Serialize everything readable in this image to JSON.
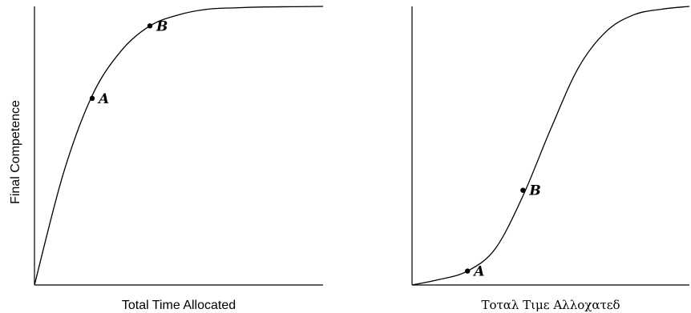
{
  "chart_data": [
    {
      "type": "line",
      "xlabel": "Total Time Allocated",
      "ylabel": "Final Competence",
      "xlim": [
        0,
        1
      ],
      "ylim": [
        0,
        1
      ],
      "curve_shape": "concave-saturating",
      "x": [
        0,
        0.1,
        0.2,
        0.3,
        0.4,
        0.5,
        0.6,
        0.7,
        0.8,
        0.9,
        1.0
      ],
      "y": [
        0,
        0.4,
        0.68,
        0.84,
        0.93,
        0.97,
        0.99,
        0.995,
        0.998,
        0.999,
        1.0
      ],
      "annotations": [
        {
          "label": "A",
          "x": 0.2,
          "y": 0.67
        },
        {
          "label": "B",
          "x": 0.4,
          "y": 0.93
        }
      ]
    },
    {
      "type": "line",
      "xlabel": "Τοταλ Τιμε Αλλοχατεδ",
      "ylabel": "",
      "xlim": [
        0,
        1
      ],
      "ylim": [
        0,
        1
      ],
      "curve_shape": "sigmoid",
      "x": [
        0,
        0.1,
        0.2,
        0.3,
        0.4,
        0.5,
        0.6,
        0.7,
        0.8,
        0.9,
        1.0
      ],
      "y": [
        0,
        0.02,
        0.05,
        0.13,
        0.32,
        0.56,
        0.78,
        0.91,
        0.97,
        0.99,
        1.0
      ],
      "annotations": [
        {
          "label": "A",
          "x": 0.2,
          "y": 0.05
        },
        {
          "label": "B",
          "x": 0.4,
          "y": 0.34
        }
      ]
    }
  ]
}
